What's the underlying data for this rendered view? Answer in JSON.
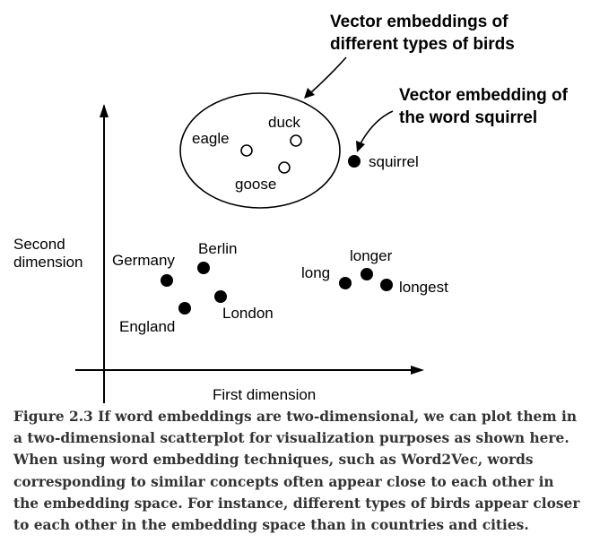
{
  "axes": {
    "x_label": "First dimension",
    "y_label_lines": [
      "Second",
      "dimension"
    ]
  },
  "annotations": {
    "birds_lines": [
      "Vector embeddings of",
      "different types of birds"
    ],
    "squirrel_lines": [
      "Vector embedding of",
      "the word squirrel"
    ]
  },
  "points": [
    {
      "word": "eagle",
      "marker": "open"
    },
    {
      "word": "duck",
      "marker": "open"
    },
    {
      "word": "goose",
      "marker": "open"
    },
    {
      "word": "squirrel",
      "marker": "filled"
    },
    {
      "word": "Germany",
      "marker": "filled"
    },
    {
      "word": "Berlin",
      "marker": "filled"
    },
    {
      "word": "England",
      "marker": "filled"
    },
    {
      "word": "London",
      "marker": "filled"
    },
    {
      "word": "long",
      "marker": "filled"
    },
    {
      "word": "longer",
      "marker": "filled"
    },
    {
      "word": "longest",
      "marker": "filled"
    }
  ],
  "caption": "Figure 2.3 If word embeddings are two-dimensional, we can plot them in a two-dimensional scatterplot for visualization purposes as shown here. When using word embedding techniques, such as Word2Vec, words corresponding to similar concepts often appear close to each other in the embedding space. For instance, different types of birds appear closer to each other in the embedding space than in countries and cities."
}
